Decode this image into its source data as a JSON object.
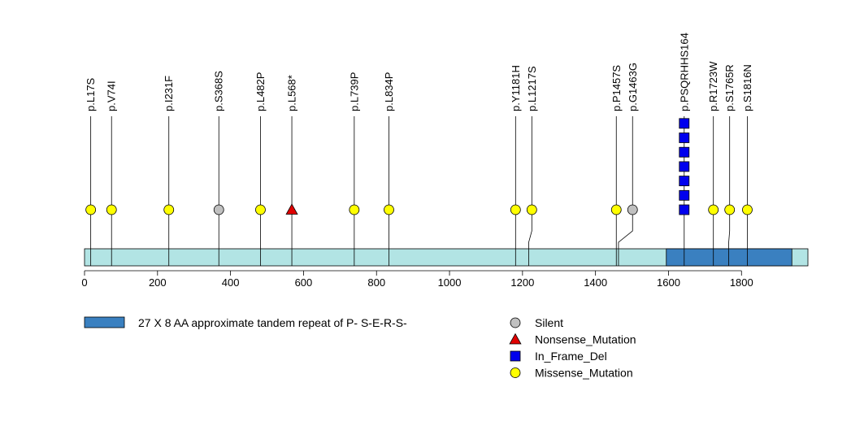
{
  "chart_data": {
    "type": "lollipop",
    "xlim": [
      0,
      1982
    ],
    "x_ticks": [
      0,
      200,
      400,
      600,
      800,
      1000,
      1200,
      1400,
      1600,
      1800
    ],
    "protein_domains": [
      {
        "name": "27 X 8 AA approximate tandem repeat of P- S-E-R-S-",
        "start": 1594,
        "end": 1938,
        "color": "#3a80c0"
      }
    ],
    "protein_color": "#b2e4e4",
    "mutation_types": [
      {
        "name": "Silent",
        "shape": "circle",
        "color": "#c0c0c0"
      },
      {
        "name": "Nonsense_Mutation",
        "shape": "triangle",
        "color": "#e00000"
      },
      {
        "name": "In_Frame_Del",
        "shape": "square",
        "color": "#0000ee"
      },
      {
        "name": "Missense_Mutation",
        "shape": "circle",
        "color": "#ffff00"
      }
    ],
    "mutations": [
      {
        "label": "p.L17S",
        "position": 17,
        "type": "Missense_Mutation",
        "count": 1
      },
      {
        "label": "p.V74I",
        "position": 74,
        "type": "Missense_Mutation",
        "count": 1
      },
      {
        "label": "p.I231F",
        "position": 231,
        "type": "Missense_Mutation",
        "count": 1
      },
      {
        "label": "p.S368S",
        "position": 368,
        "type": "Silent",
        "count": 1
      },
      {
        "label": "p.L482P",
        "position": 482,
        "type": "Missense_Mutation",
        "count": 1
      },
      {
        "label": "p.L568*",
        "position": 568,
        "type": "Nonsense_Mutation",
        "count": 1
      },
      {
        "label": "p.L739P",
        "position": 739,
        "type": "Missense_Mutation",
        "count": 1
      },
      {
        "label": "p.L834P",
        "position": 834,
        "type": "Missense_Mutation",
        "count": 1
      },
      {
        "label": "p.Y1181H",
        "position": 1181,
        "type": "Missense_Mutation",
        "count": 1
      },
      {
        "label": "p.L1217S",
        "position": 1217,
        "type": "Missense_Mutation",
        "count": 1
      },
      {
        "label": "p.P1457S",
        "position": 1457,
        "type": "Missense_Mutation",
        "count": 1
      },
      {
        "label": "p.G1463G",
        "position": 1463,
        "type": "Silent",
        "count": 1
      },
      {
        "label": "p.PSQRHHS164",
        "position": 1643,
        "type": "In_Frame_Del",
        "count": 7
      },
      {
        "label": "p.R1723W",
        "position": 1723,
        "type": "Missense_Mutation",
        "count": 1
      },
      {
        "label": "p.S1765R",
        "position": 1765,
        "type": "Missense_Mutation",
        "count": 1
      },
      {
        "label": "p.S1816N",
        "position": 1816,
        "type": "Missense_Mutation",
        "count": 1
      }
    ]
  }
}
